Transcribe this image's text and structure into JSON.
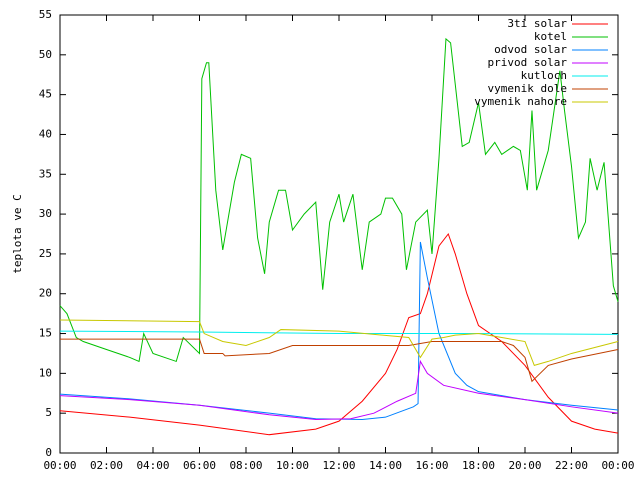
{
  "chart_data": {
    "type": "line",
    "y_label": "teplota ve C",
    "xlim": [
      0,
      24
    ],
    "xticks": [
      {
        "value": 0,
        "label": "00:00"
      },
      {
        "value": 2,
        "label": "02:00"
      },
      {
        "value": 4,
        "label": "04:00"
      },
      {
        "value": 6,
        "label": "06:00"
      },
      {
        "value": 8,
        "label": "08:00"
      },
      {
        "value": 10,
        "label": "10:00"
      },
      {
        "value": 12,
        "label": "12:00"
      },
      {
        "value": 14,
        "label": "14:00"
      },
      {
        "value": 16,
        "label": "16:00"
      },
      {
        "value": 18,
        "label": "18:00"
      },
      {
        "value": 20,
        "label": "20:00"
      },
      {
        "value": 22,
        "label": "22:00"
      },
      {
        "value": 24,
        "label": "00:00"
      }
    ],
    "ylim": [
      0,
      55
    ],
    "yticks": [
      0,
      5,
      10,
      15,
      20,
      25,
      30,
      35,
      40,
      45,
      50,
      55
    ],
    "legend": "top-right",
    "series": [
      {
        "name": "3ti solar",
        "color": "#ff0000",
        "x": [
          0,
          3,
          6,
          9,
          11,
          12,
          13,
          14,
          14.5,
          15,
          15.5,
          15.8,
          16.3,
          16.7,
          17,
          17.5,
          18,
          19,
          20,
          21,
          22,
          23,
          24
        ],
        "values": [
          5.3,
          4.5,
          3.5,
          2.3,
          3,
          4,
          6.5,
          10,
          13,
          17,
          17.5,
          20,
          26,
          27.5,
          25,
          20,
          16,
          14,
          11,
          7,
          4,
          3,
          2.5
        ]
      },
      {
        "name": "kotel",
        "color": "#00c000",
        "x": [
          0,
          0.3,
          0.7,
          1,
          2,
          3,
          3.4,
          3.6,
          4,
          5,
          5.3,
          6,
          6.1,
          6.3,
          6.4,
          6.7,
          7,
          7.5,
          7.8,
          8.2,
          8.5,
          8.8,
          9,
          9.4,
          9.7,
          10,
          10.5,
          11,
          11.3,
          11.6,
          12,
          12.2,
          12.6,
          13,
          13.3,
          13.8,
          14,
          14.3,
          14.7,
          14.9,
          15.3,
          15.8,
          16,
          16.3,
          16.6,
          16.8,
          17.3,
          17.6,
          18,
          18.3,
          18.7,
          19,
          19.5,
          19.8,
          20.1,
          20.3,
          20.5,
          21,
          21.5,
          21.7,
          22,
          22.3,
          22.6,
          22.8,
          23.1,
          23.4,
          23.8,
          24
        ],
        "values": [
          18.5,
          17.5,
          14.5,
          14,
          13,
          12,
          11.5,
          15,
          12.5,
          11.5,
          14.5,
          12.5,
          47,
          49,
          49,
          33,
          25.5,
          34,
          37.5,
          37,
          27,
          22.5,
          29,
          33,
          33,
          28,
          30,
          31.5,
          20.5,
          29,
          32.5,
          29,
          32.5,
          23,
          29,
          30,
          32,
          32,
          30,
          23,
          29,
          30.5,
          25,
          37,
          52,
          51.5,
          38.5,
          39,
          44,
          37.5,
          39,
          37.5,
          38.5,
          38,
          33,
          43,
          33,
          38,
          48,
          43,
          36,
          27,
          29,
          37,
          33,
          36.5,
          21,
          19
        ]
      },
      {
        "name": "odvod solar",
        "color": "#0080ff",
        "x": [
          0,
          3,
          6,
          9,
          11,
          13,
          14,
          15.2,
          15.4,
          15.5,
          15.8,
          16.3,
          17,
          17.5,
          18,
          20,
          22,
          24
        ],
        "values": [
          7.4,
          6.8,
          6,
          5,
          4.3,
          4.2,
          4.5,
          5.8,
          6.2,
          26.5,
          22,
          15,
          10,
          8.5,
          7.7,
          6.7,
          6,
          5.4
        ]
      },
      {
        "name": "privod solar",
        "color": "#c000ff",
        "x": [
          0,
          3,
          6,
          9,
          11,
          12.5,
          13.5,
          14.5,
          15.3,
          15.5,
          15.8,
          16.5,
          18,
          20,
          22,
          24
        ],
        "values": [
          7.2,
          6.7,
          6,
          4.8,
          4.2,
          4.3,
          5,
          6.5,
          7.5,
          11.5,
          10,
          8.5,
          7.5,
          6.7,
          5.8,
          5
        ]
      },
      {
        "name": "kutloch",
        "color": "#00eeee",
        "x": [
          0,
          6,
          12,
          18,
          24
        ],
        "values": [
          15.3,
          15.2,
          15,
          15,
          14.9
        ]
      },
      {
        "name": "vymenik dole",
        "color": "#c04000",
        "x": [
          0,
          6,
          6.2,
          7,
          7.1,
          9,
          10,
          15,
          16,
          19,
          19.5,
          20,
          20.3,
          21,
          22,
          24
        ],
        "values": [
          14.3,
          14.3,
          12.5,
          12.5,
          12.2,
          12.5,
          13.5,
          13.5,
          14,
          14,
          13.5,
          12,
          9,
          11,
          11.8,
          13
        ]
      },
      {
        "name": "vymenik nahore",
        "color": "#c8c800",
        "x": [
          0,
          6,
          6.2,
          7,
          8,
          9,
          9.5,
          12,
          15,
          15.5,
          16,
          16.5,
          17,
          18,
          19,
          20,
          20.4,
          21,
          22,
          24
        ],
        "values": [
          16.7,
          16.5,
          15,
          14,
          13.5,
          14.5,
          15.5,
          15.3,
          14.5,
          12,
          14.3,
          14.5,
          14.8,
          15,
          14.5,
          14,
          11,
          11.5,
          12.5,
          14
        ]
      }
    ]
  }
}
